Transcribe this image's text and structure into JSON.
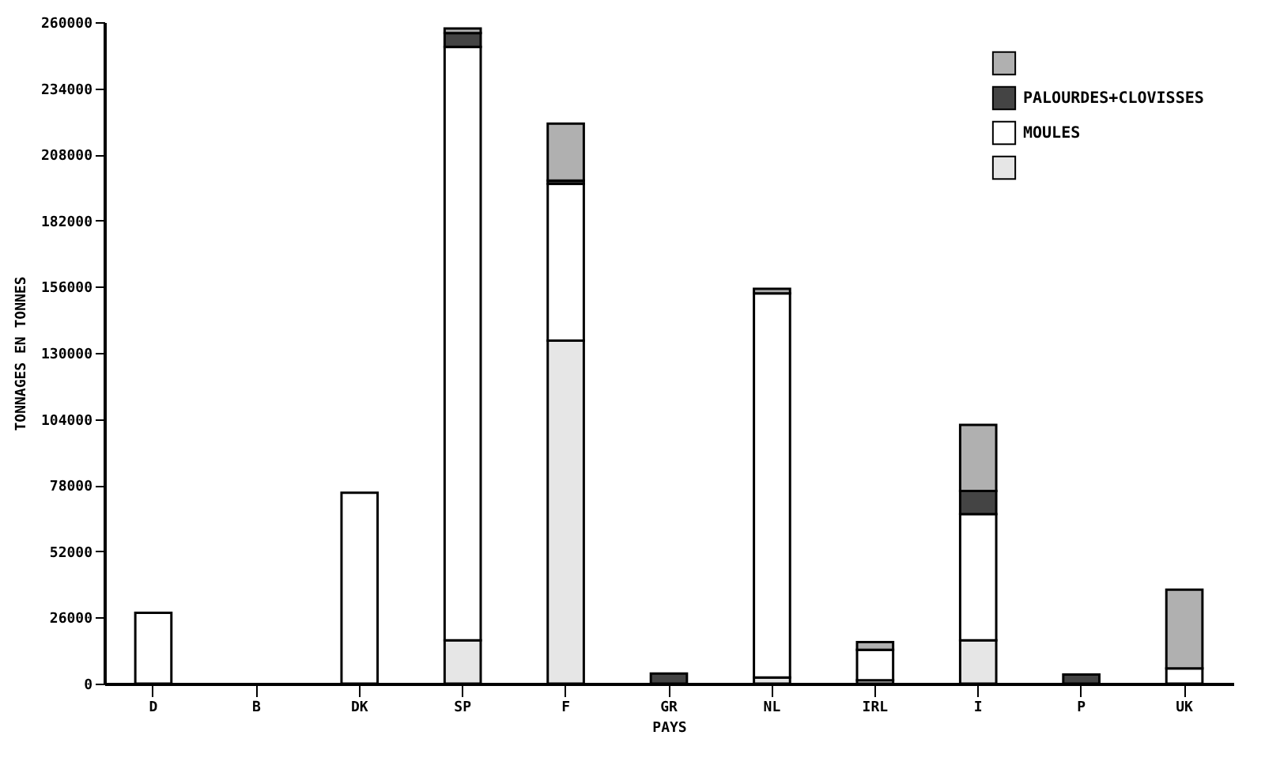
{
  "chart_data": {
    "type": "bar",
    "stacked": true,
    "xlabel": "PAYS",
    "ylabel": "TONNAGES EN TONNES",
    "categories": [
      "D",
      "B",
      "DK",
      "SP",
      "F",
      "GR",
      "NL",
      "IRL",
      "I",
      "P",
      "UK"
    ],
    "series": [
      {
        "color": "#e6e6e6",
        "values": [
          null,
          null,
          null,
          17000,
          134800,
          null,
          2400,
          1300,
          17000,
          null,
          null
        ]
      },
      {
        "name": "MOULES",
        "color": "#ffffff",
        "values": [
          27800,
          null,
          75000,
          233300,
          61700,
          null,
          151000,
          12000,
          49600,
          null,
          6000
        ]
      },
      {
        "name": "PALOURDES+CLOVISSES",
        "color": "#444444",
        "values": [
          null,
          null,
          null,
          5400,
          1200,
          4000,
          null,
          null,
          9100,
          3600,
          null
        ]
      },
      {
        "color": "#b0b0b0",
        "values": [
          null,
          null,
          null,
          1800,
          22400,
          null,
          1800,
          3000,
          26000,
          null,
          30900
        ]
      }
    ],
    "ylim": [
      0,
      260000
    ],
    "yticks": [
      0,
      26000,
      52000,
      78000,
      104000,
      130000,
      156000,
      182000,
      208000,
      234000,
      260000
    ],
    "grid": false,
    "legend": "top right"
  }
}
